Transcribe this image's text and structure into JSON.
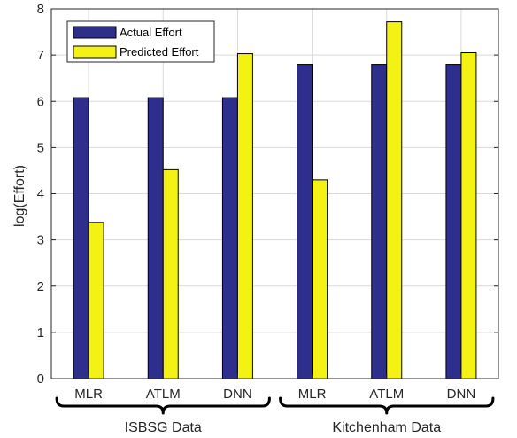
{
  "chart_data": {
    "type": "bar",
    "title": "",
    "xlabel": "",
    "ylabel": "log(Effort)",
    "ylim": [
      0,
      8
    ],
    "yticks": [
      "0",
      "1",
      "2",
      "3",
      "4",
      "5",
      "6",
      "7",
      "8"
    ],
    "grid": true,
    "legend_position": "top-left",
    "categories": [
      "MLR",
      "ATLM",
      "DNN",
      "MLR",
      "ATLM",
      "DNN"
    ],
    "groups": [
      {
        "label": "ISBSG Data",
        "categories": [
          0,
          1,
          2
        ]
      },
      {
        "label": "Kitchenham Data",
        "categories": [
          3,
          4,
          5
        ]
      }
    ],
    "series": [
      {
        "name": "Actual Effort",
        "color": "#2e2f8c",
        "values": [
          6.08,
          6.08,
          6.08,
          6.8,
          6.8,
          6.8
        ]
      },
      {
        "name": "Predicted Effort",
        "color": "#f3f212",
        "values": [
          3.38,
          4.52,
          7.03,
          4.3,
          7.72,
          7.05
        ]
      }
    ]
  }
}
